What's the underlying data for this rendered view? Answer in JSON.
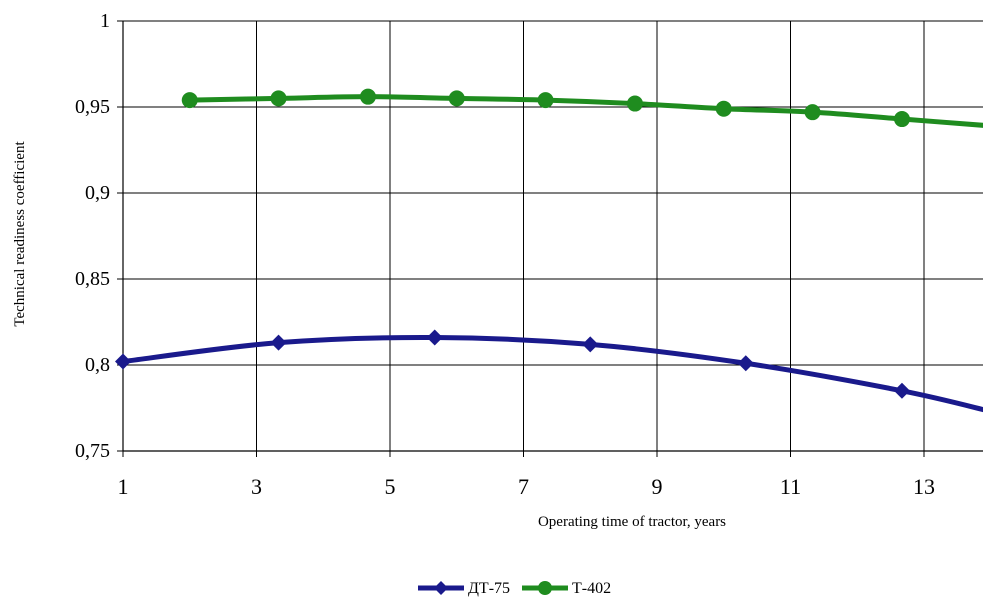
{
  "chart_data": {
    "type": "line",
    "title": "",
    "xlabel": "Operating time of tractor, years",
    "ylabel": "Technical readiness coefficient",
    "xlim": [
      1,
      14
    ],
    "ylim": [
      0.75,
      1
    ],
    "x_ticks": [
      1,
      3,
      5,
      7,
      9,
      11,
      13
    ],
    "x_tick_labels": [
      "1",
      "3",
      "5",
      "7",
      "9",
      "11",
      "13"
    ],
    "y_ticks": [
      0.75,
      0.8,
      0.85,
      0.9,
      0.95,
      1
    ],
    "y_tick_labels": [
      "0,75",
      "0,8",
      "0,85",
      "0,9",
      "0,95",
      "1"
    ],
    "grid": true,
    "legend_position": "bottom-center",
    "series": [
      {
        "name": "ДТ-75",
        "color": "#1a1a8c",
        "marker": "diamond",
        "x": [
          1,
          3.33,
          5.67,
          8,
          10.33,
          12.67,
          14
        ],
        "values": [
          0.802,
          0.813,
          0.816,
          0.812,
          0.801,
          0.785,
          0.773
        ]
      },
      {
        "name": "Т-402",
        "color": "#1f8c1f",
        "marker": "circle",
        "x": [
          2,
          3.33,
          4.67,
          6,
          7.33,
          8.67,
          10,
          11.33,
          12.67,
          14
        ],
        "values": [
          0.954,
          0.955,
          0.956,
          0.955,
          0.954,
          0.952,
          0.949,
          0.947,
          0.943,
          0.939
        ]
      }
    ]
  }
}
